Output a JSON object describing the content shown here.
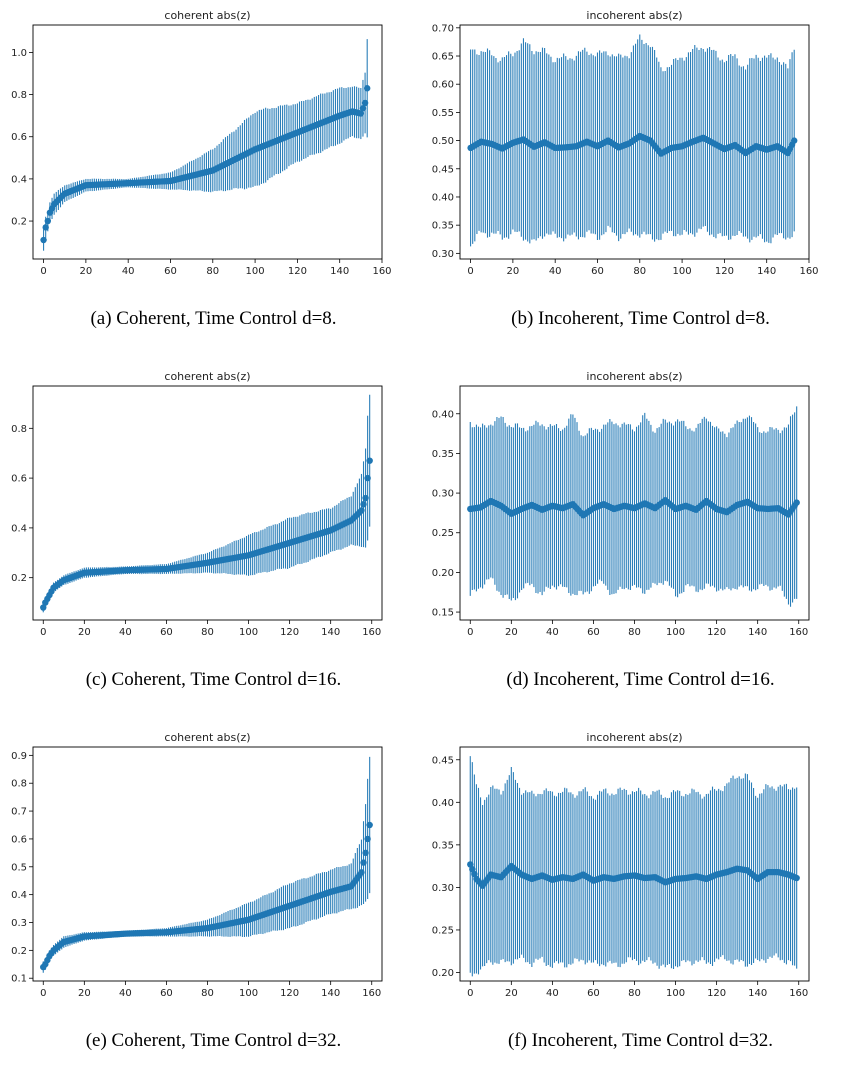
{
  "chart_data": [
    {
      "type": "errorbar",
      "title": "coherent abs(z)",
      "caption": "(a) Coherent, Time Control d=8.",
      "xlim": [
        -5,
        160
      ],
      "ylim": [
        0.02,
        1.13
      ],
      "xticks": [
        "0",
        "20",
        "40",
        "60",
        "80",
        "100",
        "120",
        "140",
        "160"
      ],
      "yticks": [
        "0.2",
        "0.4",
        "0.6",
        "0.8",
        "1.0"
      ],
      "x_count": 154,
      "color": "#1f77b4",
      "curve": {
        "x": [
          0,
          1,
          2,
          3,
          5,
          10,
          20,
          40,
          60,
          80,
          100,
          120,
          140,
          146,
          150,
          152,
          153
        ],
        "mean": [
          0.11,
          0.17,
          0.2,
          0.24,
          0.28,
          0.33,
          0.37,
          0.38,
          0.39,
          0.44,
          0.54,
          0.62,
          0.7,
          0.72,
          0.71,
          0.76,
          0.83
        ],
        "error": [
          0.05,
          0.05,
          0.05,
          0.05,
          0.05,
          0.04,
          0.03,
          0.02,
          0.04,
          0.1,
          0.18,
          0.14,
          0.13,
          0.12,
          0.12,
          0.15,
          0.24
        ]
      }
    },
    {
      "type": "errorbar",
      "title": "incoherent abs(z)",
      "caption": "(b) Incoherent, Time Control d=8.",
      "xlim": [
        -5,
        160
      ],
      "ylim": [
        0.29,
        0.705
      ],
      "xticks": [
        "0",
        "20",
        "40",
        "60",
        "80",
        "100",
        "120",
        "140",
        "160"
      ],
      "yticks": [
        "0.30",
        "0.35",
        "0.40",
        "0.45",
        "0.50",
        "0.55",
        "0.60",
        "0.65",
        "0.70"
      ],
      "x_count": 154,
      "color": "#1f77b4",
      "curve": {
        "x": [
          0,
          5,
          10,
          15,
          20,
          25,
          30,
          35,
          40,
          45,
          50,
          55,
          60,
          65,
          70,
          75,
          80,
          85,
          90,
          95,
          100,
          105,
          110,
          115,
          120,
          125,
          130,
          135,
          140,
          145,
          150,
          153
        ],
        "mean": [
          0.487,
          0.498,
          0.494,
          0.486,
          0.496,
          0.502,
          0.489,
          0.497,
          0.487,
          0.488,
          0.49,
          0.498,
          0.49,
          0.5,
          0.488,
          0.495,
          0.508,
          0.5,
          0.477,
          0.487,
          0.49,
          0.498,
          0.505,
          0.495,
          0.485,
          0.492,
          0.478,
          0.49,
          0.484,
          0.49,
          0.478,
          0.5
        ],
        "error": [
          0.17,
          0.16,
          0.16,
          0.16,
          0.16,
          0.17,
          0.17,
          0.16,
          0.16,
          0.16,
          0.16,
          0.16,
          0.16,
          0.16,
          0.16,
          0.16,
          0.17,
          0.17,
          0.15,
          0.15,
          0.16,
          0.16,
          0.16,
          0.16,
          0.16,
          0.16,
          0.15,
          0.16,
          0.16,
          0.16,
          0.15,
          0.17
        ]
      }
    },
    {
      "type": "errorbar",
      "title": "coherent abs(z)",
      "caption": "(c) Coherent, Time Control d=16.",
      "xlim": [
        -5,
        165
      ],
      "ylim": [
        0.03,
        0.97
      ],
      "xticks": [
        "0",
        "20",
        "40",
        "60",
        "80",
        "100",
        "120",
        "140",
        "160"
      ],
      "yticks": [
        "0.2",
        "0.4",
        "0.6",
        "0.8"
      ],
      "x_count": 160,
      "color": "#1f77b4",
      "curve": {
        "x": [
          0,
          1,
          3,
          5,
          10,
          20,
          40,
          60,
          80,
          100,
          120,
          140,
          150,
          155,
          157,
          158,
          159
        ],
        "mean": [
          0.08,
          0.1,
          0.13,
          0.16,
          0.19,
          0.22,
          0.23,
          0.235,
          0.26,
          0.29,
          0.34,
          0.39,
          0.43,
          0.47,
          0.52,
          0.6,
          0.67
        ],
        "error": [
          0.02,
          0.02,
          0.02,
          0.02,
          0.02,
          0.02,
          0.015,
          0.02,
          0.04,
          0.08,
          0.1,
          0.09,
          0.1,
          0.14,
          0.2,
          0.25,
          0.27
        ]
      }
    },
    {
      "type": "errorbar",
      "title": "incoherent abs(z)",
      "caption": "(d) Incoherent, Time Control d=16.",
      "xlim": [
        -5,
        165
      ],
      "ylim": [
        0.14,
        0.435
      ],
      "xticks": [
        "0",
        "20",
        "40",
        "60",
        "80",
        "100",
        "120",
        "140",
        "160"
      ],
      "yticks": [
        "0.15",
        "0.20",
        "0.25",
        "0.30",
        "0.35",
        "0.40"
      ],
      "x_count": 160,
      "color": "#1f77b4",
      "curve": {
        "x": [
          0,
          5,
          10,
          15,
          20,
          25,
          30,
          35,
          40,
          45,
          50,
          55,
          60,
          65,
          70,
          75,
          80,
          85,
          90,
          95,
          100,
          105,
          110,
          115,
          120,
          125,
          130,
          135,
          140,
          145,
          150,
          155,
          159
        ],
        "mean": [
          0.28,
          0.282,
          0.29,
          0.284,
          0.274,
          0.28,
          0.285,
          0.279,
          0.284,
          0.281,
          0.286,
          0.272,
          0.281,
          0.286,
          0.28,
          0.284,
          0.281,
          0.287,
          0.281,
          0.291,
          0.28,
          0.284,
          0.279,
          0.29,
          0.28,
          0.276,
          0.285,
          0.289,
          0.281,
          0.28,
          0.281,
          0.273,
          0.288
        ],
        "error": [
          0.11,
          0.1,
          0.1,
          0.11,
          0.11,
          0.1,
          0.1,
          0.11,
          0.1,
          0.1,
          0.11,
          0.1,
          0.1,
          0.1,
          0.11,
          0.1,
          0.1,
          0.11,
          0.1,
          0.1,
          0.11,
          0.1,
          0.1,
          0.11,
          0.1,
          0.1,
          0.1,
          0.11,
          0.1,
          0.1,
          0.1,
          0.11,
          0.12
        ]
      }
    },
    {
      "type": "errorbar",
      "title": "coherent abs(z)",
      "caption": "(e) Coherent, Time Control d=32.",
      "xlim": [
        -5,
        165
      ],
      "ylim": [
        0.09,
        0.93
      ],
      "xticks": [
        "0",
        "20",
        "40",
        "60",
        "80",
        "100",
        "120",
        "140",
        "160"
      ],
      "yticks": [
        "0.1",
        "0.2",
        "0.3",
        "0.4",
        "0.5",
        "0.6",
        "0.7",
        "0.8",
        "0.9"
      ],
      "x_count": 160,
      "color": "#1f77b4",
      "curve": {
        "x": [
          0,
          1,
          3,
          5,
          10,
          20,
          40,
          60,
          80,
          100,
          120,
          140,
          150,
          155,
          157,
          158,
          159
        ],
        "mean": [
          0.14,
          0.15,
          0.18,
          0.2,
          0.23,
          0.25,
          0.26,
          0.265,
          0.28,
          0.31,
          0.36,
          0.41,
          0.43,
          0.48,
          0.55,
          0.6,
          0.65
        ],
        "error": [
          0.02,
          0.02,
          0.02,
          0.02,
          0.02,
          0.015,
          0.01,
          0.015,
          0.03,
          0.06,
          0.08,
          0.08,
          0.08,
          0.12,
          0.18,
          0.22,
          0.24
        ]
      }
    },
    {
      "type": "errorbar",
      "title": "incoherent abs(z)",
      "caption": "(f) Incoherent, Time Control d=32.",
      "xlim": [
        -5,
        165
      ],
      "ylim": [
        0.19,
        0.465
      ],
      "xticks": [
        "0",
        "20",
        "40",
        "60",
        "80",
        "100",
        "120",
        "140",
        "160"
      ],
      "yticks": [
        "0.20",
        "0.25",
        "0.30",
        "0.35",
        "0.40",
        "0.45"
      ],
      "x_count": 160,
      "color": "#1f77b4",
      "curve": {
        "x": [
          0,
          3,
          6,
          10,
          15,
          20,
          25,
          30,
          35,
          40,
          45,
          50,
          55,
          60,
          65,
          70,
          75,
          80,
          85,
          90,
          95,
          100,
          105,
          110,
          115,
          120,
          125,
          130,
          135,
          140,
          145,
          150,
          155,
          159
        ],
        "mean": [
          0.327,
          0.31,
          0.302,
          0.315,
          0.312,
          0.325,
          0.315,
          0.31,
          0.314,
          0.309,
          0.312,
          0.31,
          0.315,
          0.308,
          0.312,
          0.31,
          0.313,
          0.314,
          0.311,
          0.312,
          0.306,
          0.31,
          0.311,
          0.313,
          0.31,
          0.315,
          0.318,
          0.322,
          0.32,
          0.31,
          0.318,
          0.318,
          0.315,
          0.311
        ],
        "error": [
          0.13,
          0.11,
          0.1,
          0.1,
          0.1,
          0.11,
          0.1,
          0.1,
          0.1,
          0.1,
          0.1,
          0.1,
          0.1,
          0.1,
          0.1,
          0.1,
          0.1,
          0.1,
          0.1,
          0.1,
          0.1,
          0.1,
          0.1,
          0.1,
          0.1,
          0.1,
          0.1,
          0.11,
          0.11,
          0.1,
          0.1,
          0.1,
          0.1,
          0.11
        ]
      }
    }
  ]
}
